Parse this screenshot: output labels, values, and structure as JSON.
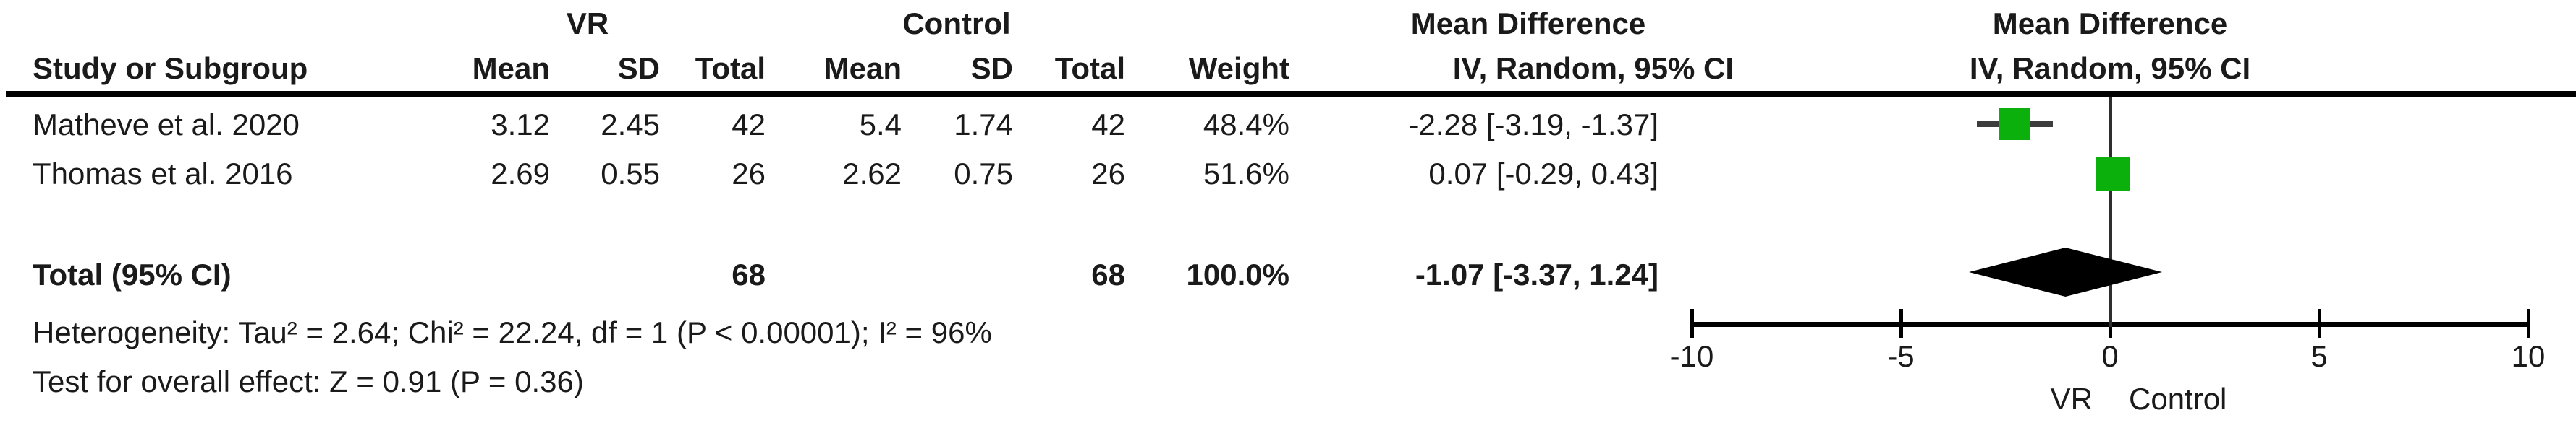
{
  "table": {
    "header": {
      "group1_label": "VR",
      "group2_label": "Control",
      "effect_label": "Mean Difference",
      "effect_sub_label": "IV, Random, 95% CI",
      "plot_effect_label": "Mean Difference",
      "plot_effect_sub_label": "IV, Random, 95% CI",
      "study_col": "Study or Subgroup",
      "mean_col": "Mean",
      "sd_col": "SD",
      "total_col": "Total",
      "weight_col": "Weight"
    },
    "rows": [
      {
        "study": "Matheve et al. 2020",
        "vr_mean": "3.12",
        "vr_sd": "2.45",
        "vr_total": "42",
        "c_mean": "5.4",
        "c_sd": "1.74",
        "c_total": "42",
        "weight": "48.4%",
        "ci": "-2.28 [-3.19, -1.37]"
      },
      {
        "study": "Thomas et al. 2016",
        "vr_mean": "2.69",
        "vr_sd": "0.55",
        "vr_total": "26",
        "c_mean": "2.62",
        "c_sd": "0.75",
        "c_total": "26",
        "weight": "51.6%",
        "ci": "0.07 [-0.29, 0.43]"
      }
    ],
    "total_row": {
      "label": "Total (95% CI)",
      "vr_total": "68",
      "c_total": "68",
      "weight": "100.0%",
      "ci": "-1.07 [-3.37, 1.24]"
    },
    "heterogeneity": "Heterogeneity: Tau² = 2.64; Chi² = 22.24, df = 1 (P < 0.00001); I² = 96%",
    "overall_effect": "Test for overall effect: Z = 0.91 (P = 0.36)"
  },
  "plot": {
    "favours_left_label": "VR",
    "favours_right_label": "Control",
    "marker_color": "#0cb00c",
    "ci_line_color": "#3d3d3d",
    "diamond_color": "#000000",
    "axis_color": "#000000"
  },
  "chart_data": {
    "type": "forest",
    "title": "Mean Difference",
    "subtitle": "IV, Random, 95% CI",
    "xlim": [
      -10,
      10
    ],
    "x_ticks": [
      -10,
      -5,
      0,
      5,
      10
    ],
    "x_tick_labels": [
      "-10",
      "-5",
      "0",
      "5",
      "10"
    ],
    "x_axis_left_label": "VR",
    "x_axis_right_label": "Control",
    "studies": [
      {
        "name": "Matheve et al. 2020",
        "md": -2.28,
        "ci_low": -3.19,
        "ci_high": -1.37,
        "weight_pct": 48.4
      },
      {
        "name": "Thomas et al. 2016",
        "md": 0.07,
        "ci_low": -0.29,
        "ci_high": 0.43,
        "weight_pct": 51.6
      }
    ],
    "pooled": {
      "label": "Total (95% CI)",
      "md": -1.07,
      "ci_low": -3.37,
      "ci_high": 1.24,
      "weight_pct": 100.0
    },
    "heterogeneity": {
      "tau2": 2.64,
      "chi2": 22.24,
      "df": 1,
      "p": "< 0.00001",
      "i2_pct": 96
    },
    "overall_effect": {
      "z": 0.91,
      "p": 0.36
    }
  }
}
